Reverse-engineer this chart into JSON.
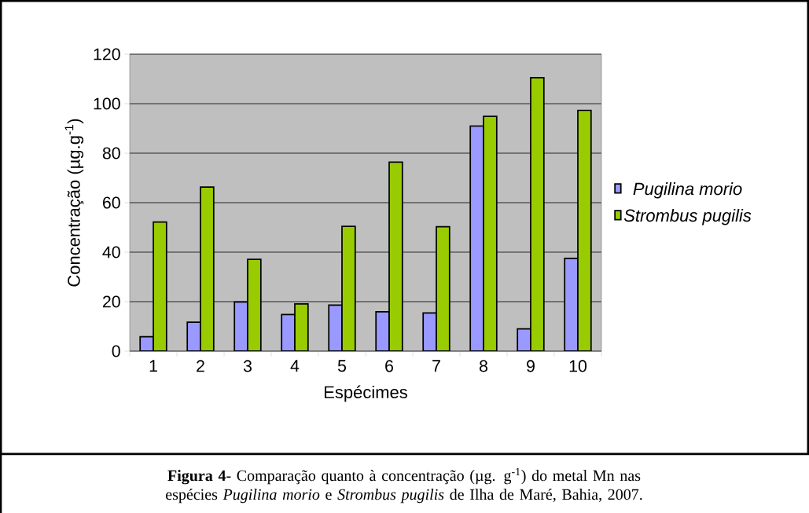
{
  "chart_data": {
    "type": "bar",
    "xlabel": "Espécimes",
    "ylabel": "Concentração (µg.g$^{-1}$)",
    "categories": [
      "1",
      "2",
      "3",
      "4",
      "5",
      "6",
      "7",
      "8",
      "9",
      "10"
    ],
    "series": [
      {
        "name": "Pugilina morio",
        "color": "#9999ff",
        "values": [
          5.8,
          11.7,
          19.9,
          14.8,
          18.6,
          15.9,
          15.4,
          91.0,
          9.0,
          37.5
        ]
      },
      {
        "name": "Strombus pugilis",
        "color": "#99cc00",
        "values": [
          52.2,
          66.3,
          37.1,
          19.1,
          50.4,
          76.4,
          50.3,
          94.9,
          110.5,
          97.3
        ]
      }
    ],
    "ylim": [
      0,
      120
    ],
    "yticks": [
      0,
      20,
      40,
      60,
      80,
      100,
      120
    ],
    "grid": "y",
    "legend": "right",
    "annotations": [
      "**Figura 4**- Comparação quanto à concentração (µg. g$^{-1}$) do metal Mn nas espécies *Pugilina morio* e *Strombus pugilis* de Ilha de Maré, Bahia, 2007."
    ]
  }
}
